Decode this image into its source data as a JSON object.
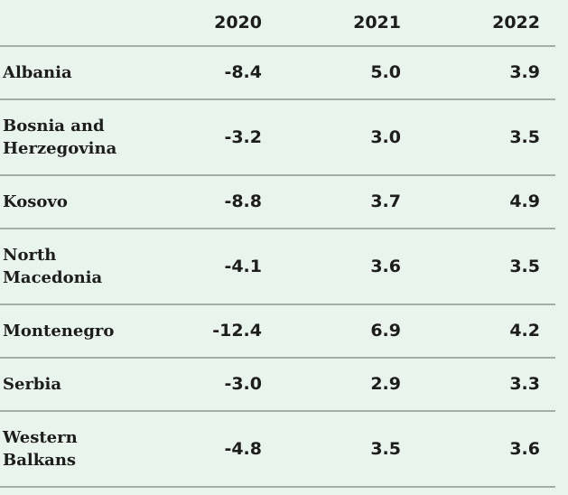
{
  "colors": {
    "background": "#e8f4ec",
    "divider": "#a6ada7",
    "text": "#1d1d1b"
  },
  "chart_data": {
    "type": "table",
    "corner_label": "",
    "columns": [
      "2020",
      "2021",
      "2022"
    ],
    "rows": [
      {
        "label": "Albania",
        "values": [
          "-8.4",
          "5.0",
          "3.9"
        ]
      },
      {
        "label": "Bosnia and Herzegovina",
        "values": [
          "-3.2",
          "3.0",
          "3.5"
        ]
      },
      {
        "label": "Kosovo",
        "values": [
          "-8.8",
          "3.7",
          "4.9"
        ]
      },
      {
        "label": "North Macedonia",
        "values": [
          "-4.1",
          "3.6",
          "3.5"
        ]
      },
      {
        "label": "Montenegro",
        "values": [
          "-12.4",
          "6.9",
          "4.2"
        ]
      },
      {
        "label": "Serbia",
        "values": [
          "-3.0",
          "2.9",
          "3.3"
        ]
      },
      {
        "label": "Western Balkans",
        "values": [
          "-4.8",
          "3.5",
          "3.6"
        ]
      }
    ]
  }
}
